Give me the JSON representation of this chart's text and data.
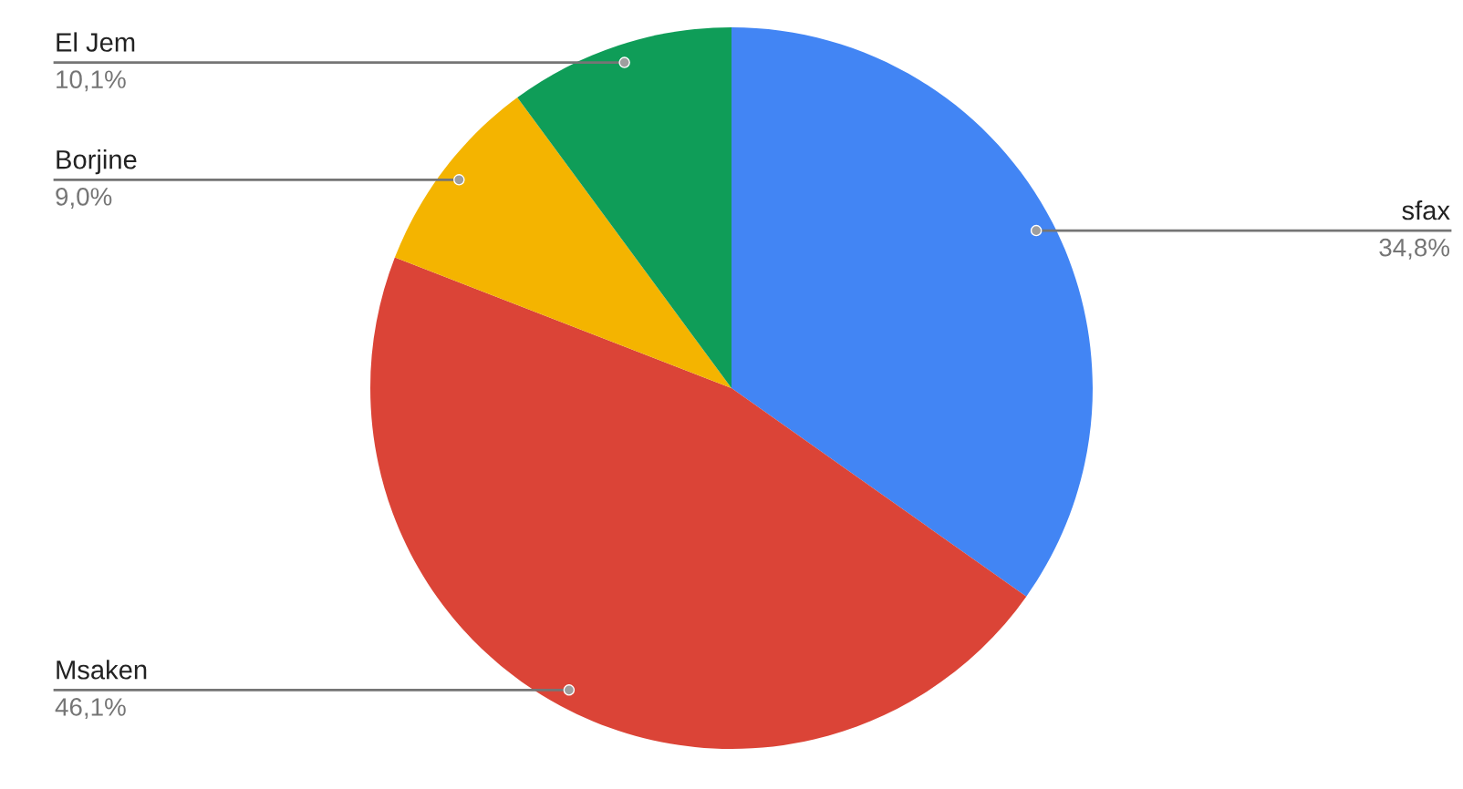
{
  "chart_data": {
    "type": "pie",
    "categories": [
      "sfax",
      "Msaken",
      "Borjine",
      "El Jem"
    ],
    "values": [
      34.8,
      46.1,
      9.0,
      10.1
    ],
    "colors": [
      "#4285f4",
      "#db4437",
      "#f4b400",
      "#0f9d58"
    ],
    "value_labels": [
      "34,8%",
      "46,1%",
      "9,0%",
      "10,1%"
    ]
  }
}
